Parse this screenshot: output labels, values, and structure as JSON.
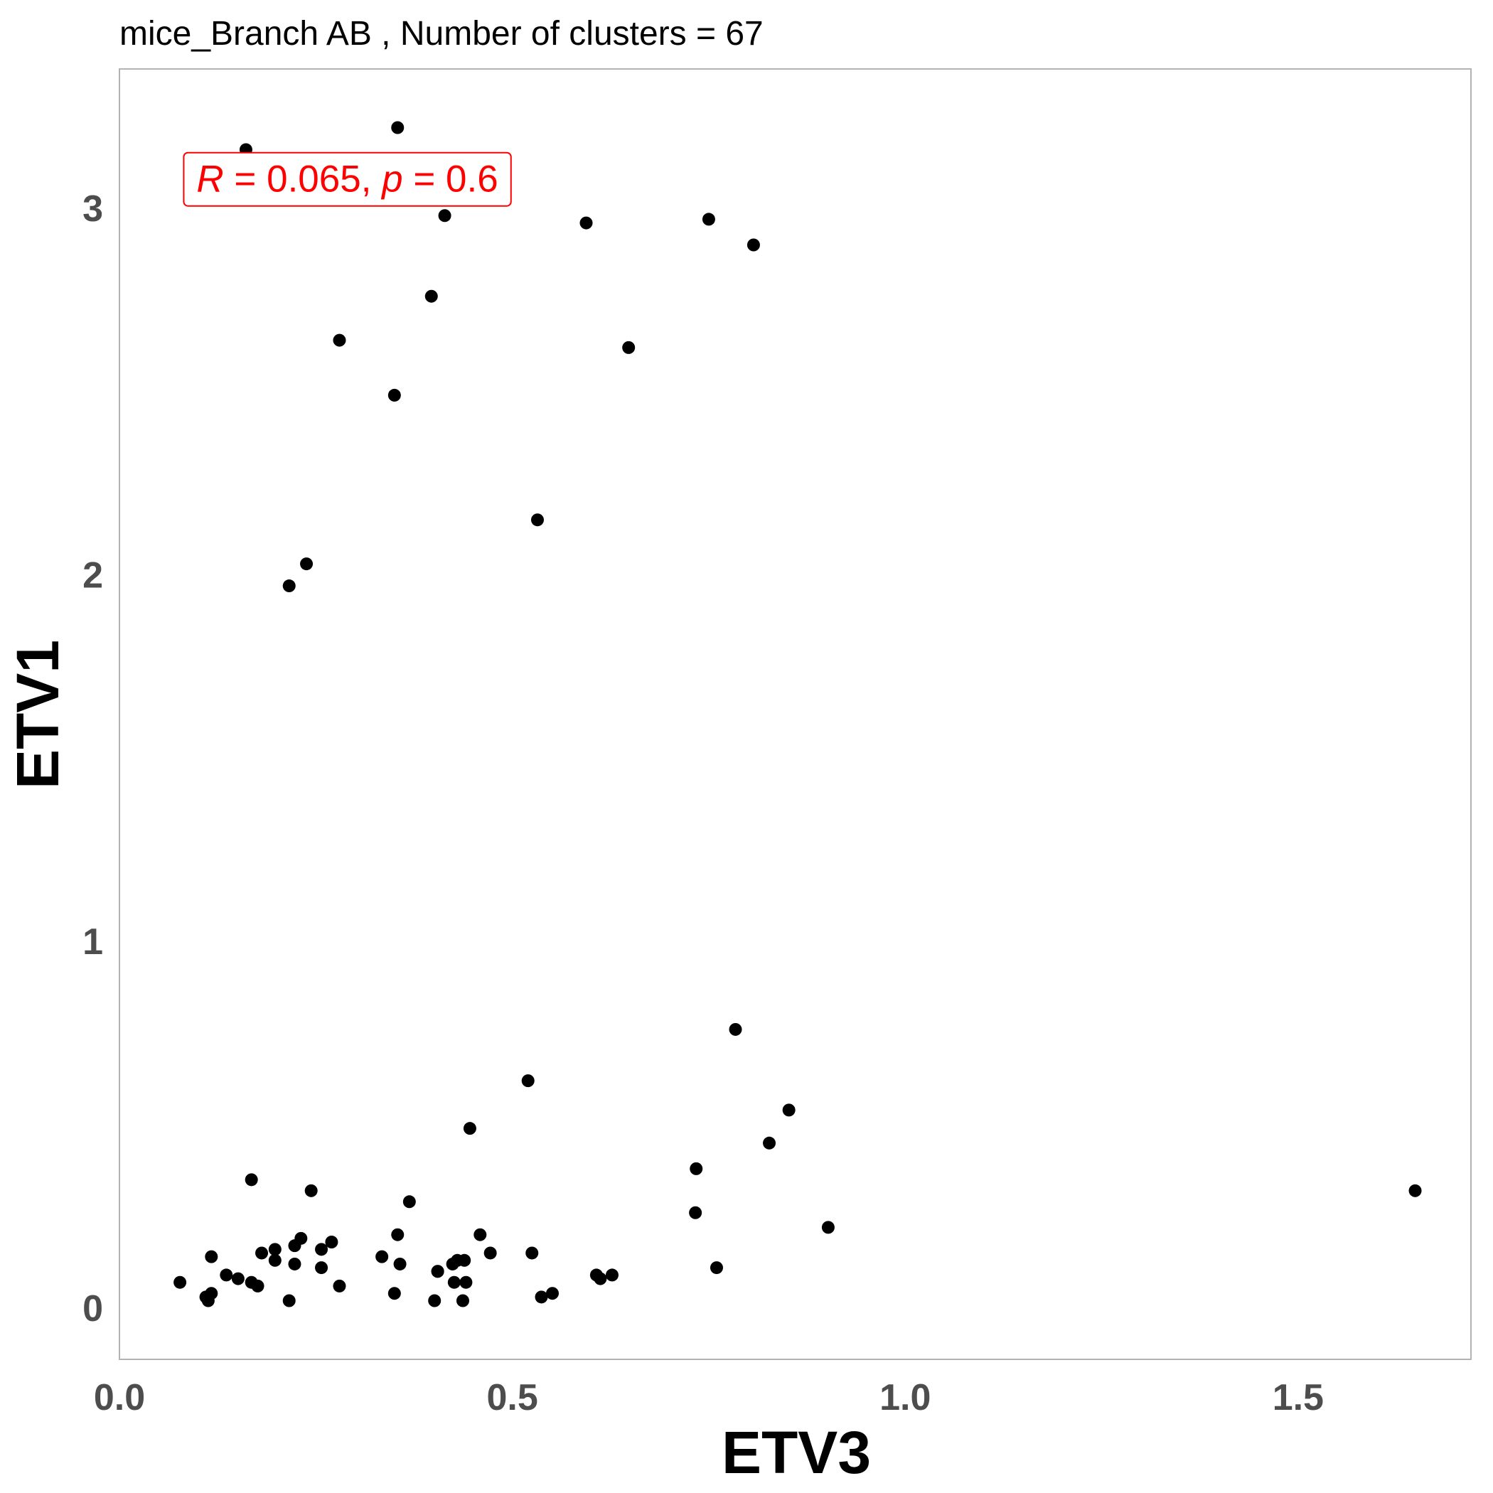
{
  "chart_data": {
    "type": "scatter",
    "title": "mice_Branch AB , Number of clusters =  67",
    "xlabel": "ETV3",
    "ylabel": "ETV1",
    "xlim": [
      0.0,
      1.72
    ],
    "ylim": [
      -0.14,
      3.38
    ],
    "xticks": [
      0.0,
      0.5,
      1.0,
      1.5
    ],
    "xtick_labels": [
      "0.0",
      "0.5",
      "1.0",
      "1.5"
    ],
    "yticks": [
      0,
      1,
      2,
      3
    ],
    "ytick_labels": [
      "0",
      "1",
      "2",
      "3"
    ],
    "grid": false,
    "point_color": "#000000",
    "annotation": {
      "r_symbol": "R",
      "r_text": " = 0.065, ",
      "p_symbol": "p",
      "p_text": " = 0.6",
      "color": "#ff0000",
      "position_data": [
        0.08,
        3.08
      ]
    },
    "points": [
      {
        "x": 0.161,
        "y": 3.16
      },
      {
        "x": 0.354,
        "y": 3.22
      },
      {
        "x": 0.414,
        "y": 2.98
      },
      {
        "x": 0.594,
        "y": 2.96
      },
      {
        "x": 0.75,
        "y": 2.97
      },
      {
        "x": 0.807,
        "y": 2.9
      },
      {
        "x": 0.397,
        "y": 2.76
      },
      {
        "x": 0.28,
        "y": 2.64
      },
      {
        "x": 0.648,
        "y": 2.62
      },
      {
        "x": 0.35,
        "y": 2.49
      },
      {
        "x": 0.532,
        "y": 2.15
      },
      {
        "x": 0.238,
        "y": 2.03
      },
      {
        "x": 0.216,
        "y": 1.97
      },
      {
        "x": 0.784,
        "y": 0.76
      },
      {
        "x": 0.52,
        "y": 0.62
      },
      {
        "x": 0.852,
        "y": 0.54
      },
      {
        "x": 0.446,
        "y": 0.49
      },
      {
        "x": 0.827,
        "y": 0.45
      },
      {
        "x": 0.734,
        "y": 0.38
      },
      {
        "x": 0.168,
        "y": 0.35
      },
      {
        "x": 0.244,
        "y": 0.32
      },
      {
        "x": 1.649,
        "y": 0.32
      },
      {
        "x": 0.369,
        "y": 0.29
      },
      {
        "x": 0.733,
        "y": 0.26
      },
      {
        "x": 0.902,
        "y": 0.22
      },
      {
        "x": 0.354,
        "y": 0.2
      },
      {
        "x": 0.459,
        "y": 0.2
      },
      {
        "x": 0.231,
        "y": 0.19
      },
      {
        "x": 0.27,
        "y": 0.18
      },
      {
        "x": 0.223,
        "y": 0.17
      },
      {
        "x": 0.198,
        "y": 0.16
      },
      {
        "x": 0.257,
        "y": 0.16
      },
      {
        "x": 0.181,
        "y": 0.15
      },
      {
        "x": 0.472,
        "y": 0.15
      },
      {
        "x": 0.525,
        "y": 0.15
      },
      {
        "x": 0.117,
        "y": 0.14
      },
      {
        "x": 0.334,
        "y": 0.14
      },
      {
        "x": 0.198,
        "y": 0.13
      },
      {
        "x": 0.43,
        "y": 0.13
      },
      {
        "x": 0.439,
        "y": 0.13
      },
      {
        "x": 0.223,
        "y": 0.12
      },
      {
        "x": 0.357,
        "y": 0.12
      },
      {
        "x": 0.424,
        "y": 0.12
      },
      {
        "x": 0.257,
        "y": 0.11
      },
      {
        "x": 0.76,
        "y": 0.11
      },
      {
        "x": 0.405,
        "y": 0.1
      },
      {
        "x": 0.607,
        "y": 0.09
      },
      {
        "x": 0.627,
        "y": 0.09
      },
      {
        "x": 0.136,
        "y": 0.09
      },
      {
        "x": 0.151,
        "y": 0.08
      },
      {
        "x": 0.612,
        "y": 0.08
      },
      {
        "x": 0.168,
        "y": 0.07
      },
      {
        "x": 0.077,
        "y": 0.07
      },
      {
        "x": 0.426,
        "y": 0.07
      },
      {
        "x": 0.441,
        "y": 0.07
      },
      {
        "x": 0.176,
        "y": 0.06
      },
      {
        "x": 0.28,
        "y": 0.06
      },
      {
        "x": 0.117,
        "y": 0.04
      },
      {
        "x": 0.35,
        "y": 0.04
      },
      {
        "x": 0.551,
        "y": 0.04
      },
      {
        "x": 0.537,
        "y": 0.03
      },
      {
        "x": 0.113,
        "y": 0.02
      },
      {
        "x": 0.216,
        "y": 0.02
      },
      {
        "x": 0.401,
        "y": 0.02
      },
      {
        "x": 0.437,
        "y": 0.02
      },
      {
        "x": 0.11,
        "y": 0.03
      },
      {
        "x": 0.405,
        "y": 0.1
      }
    ]
  }
}
